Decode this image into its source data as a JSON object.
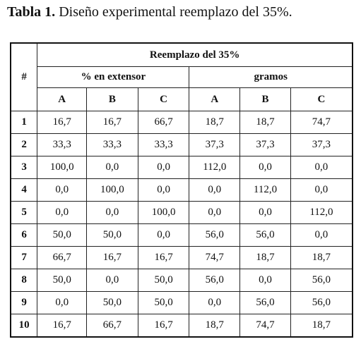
{
  "title": {
    "label": "Tabla 1.",
    "text": "Diseño experimental reemplazo del 35%."
  },
  "table": {
    "index_header": "#",
    "group": "Reemplazo del 35%",
    "subgroups": [
      "% en extensor",
      "gramos"
    ],
    "columns": [
      "A",
      "B",
      "C",
      "A",
      "B",
      "C"
    ],
    "rows": [
      [
        "1",
        "16,7",
        "16,7",
        "66,7",
        "18,7",
        "18,7",
        "74,7"
      ],
      [
        "2",
        "33,3",
        "33,3",
        "33,3",
        "37,3",
        "37,3",
        "37,3"
      ],
      [
        "3",
        "100,0",
        "0,0",
        "0,0",
        "112,0",
        "0,0",
        "0,0"
      ],
      [
        "4",
        "0,0",
        "100,0",
        "0,0",
        "0,0",
        "112,0",
        "0,0"
      ],
      [
        "5",
        "0,0",
        "0,0",
        "100,0",
        "0,0",
        "0,0",
        "112,0"
      ],
      [
        "6",
        "50,0",
        "50,0",
        "0,0",
        "56,0",
        "56,0",
        "0,0"
      ],
      [
        "7",
        "66,7",
        "16,7",
        "16,7",
        "74,7",
        "18,7",
        "18,7"
      ],
      [
        "8",
        "50,0",
        "0,0",
        "50,0",
        "56,0",
        "0,0",
        "56,0"
      ],
      [
        "9",
        "0,0",
        "50,0",
        "50,0",
        "0,0",
        "56,0",
        "56,0"
      ],
      [
        "10",
        "16,7",
        "66,7",
        "16,7",
        "18,7",
        "74,7",
        "18,7"
      ]
    ]
  }
}
